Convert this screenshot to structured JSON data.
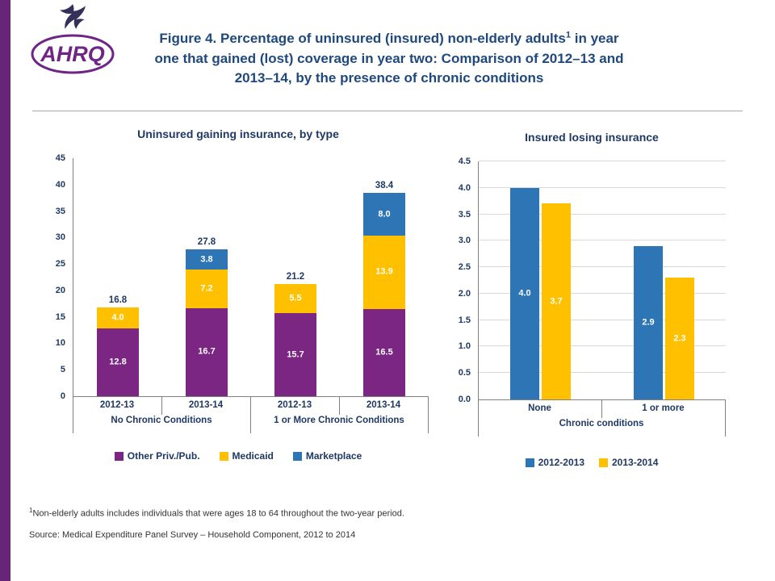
{
  "page": {
    "background": "#FFFFFF",
    "stripe_color": "#662577",
    "title_color": "#1F497D",
    "chart_text_color": "#1F3864"
  },
  "header": {
    "logo_text": "AHRQ",
    "title_part1": "Figure 4. Percentage of uninsured (insured) non-elderly adults",
    "title_sup": "1",
    "title_part2": " in year one that gained (lost) coverage in year two: Comparison of 2012–13 and 2013–14, by the presence of chronic conditions"
  },
  "chart_data": [
    {
      "type": "bar",
      "variant": "stacked",
      "title": "Uninsured gaining insurance, by type",
      "ylim": [
        0,
        45
      ],
      "ytick_step": 5,
      "ytick_decimals": 0,
      "grid": false,
      "legend_position": "bottom",
      "categories": [
        "2012-13",
        "2013-14",
        "2012-13",
        "2013-14"
      ],
      "group_labels": [
        "No Chronic Conditions",
        "1 or More Chronic Conditions"
      ],
      "series": [
        {
          "name": "Other Priv./Pub.",
          "color": "#7A2682",
          "values": [
            12.8,
            16.7,
            15.7,
            16.5
          ]
        },
        {
          "name": "Medicaid",
          "color": "#FFC000",
          "values": [
            4.0,
            7.2,
            5.5,
            13.9
          ]
        },
        {
          "name": "Marketplace",
          "color": "#2E75B6",
          "values": [
            null,
            3.8,
            null,
            8.0
          ]
        }
      ],
      "totals": [
        16.8,
        27.8,
        21.2,
        38.4
      ]
    },
    {
      "type": "bar",
      "variant": "grouped",
      "title": "Insured losing insurance",
      "ylim": [
        0,
        4.5
      ],
      "ytick_step": 0.5,
      "ytick_decimals": 1,
      "grid": true,
      "legend_position": "bottom",
      "categories": [
        "None",
        "1 or more"
      ],
      "xlabel": "Chronic conditions",
      "series": [
        {
          "name": "2012-2013",
          "color": "#2E75B6",
          "values": [
            4.0,
            2.9
          ]
        },
        {
          "name": "2013-2014",
          "color": "#FFC000",
          "values": [
            3.7,
            2.3
          ]
        }
      ]
    }
  ],
  "footnotes": {
    "note_sup": "1",
    "note_text": "Non-elderly adults includes individuals that were ages 18 to 64 throughout the two-year period.",
    "source": "Source:  Medical Expenditure Panel Survey – Household Component, 2012 to 2014"
  }
}
